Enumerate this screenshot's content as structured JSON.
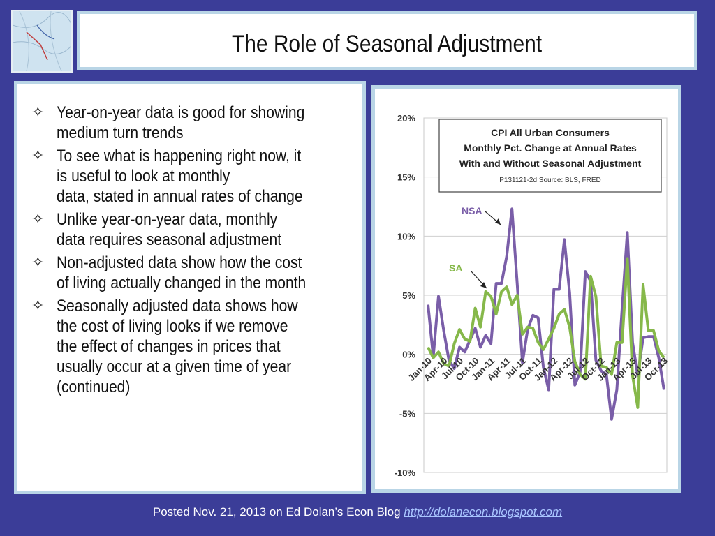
{
  "slide": {
    "title": "The Role of Seasonal Adjustment",
    "bullets": [
      {
        "icon": "star-bullet-icon",
        "text": "Year-on-year data is good for showing\nmedium turn trends"
      },
      {
        "icon": "star-bullet-icon",
        "text": "To see what is happening right now, it\nis useful to look at monthly\ndata, stated in annual rates of change"
      },
      {
        "icon": "star-bullet-icon",
        "text": "Unlike year-on-year data, monthly\ndata requires seasonal adjustment"
      },
      {
        "icon": "star-bullet-icon",
        "text": "Non-adjusted data show how the cost\nof living actually changed in the month"
      },
      {
        "icon": "star-bullet-icon",
        "text": "Seasonally adjusted data shows how\nthe cost of living looks if we remove\nthe effect of changes in prices that\nusually occur at a given time of year\n(continued)"
      }
    ]
  },
  "footer": {
    "text": "Posted Nov. 21, 2013 on Ed Dolan’s Econ Blog ",
    "link": "http://dolanecon.blogspot.com"
  },
  "chart_data": {
    "type": "line",
    "title": "CPI All Urban Consumers\nMonthly Pct. Change at Annual Rates\nWith and Without Seasonal Adjustment",
    "subtitle": "P131121-2d Source: BLS, FRED",
    "x": [
      "Jan-10",
      "Feb-10",
      "Mar-10",
      "Apr-10",
      "May-10",
      "Jun-10",
      "Jul-10",
      "Aug-10",
      "Sep-10",
      "Oct-10",
      "Nov-10",
      "Dec-10",
      "Jan-11",
      "Feb-11",
      "Mar-11",
      "Apr-11",
      "May-11",
      "Jun-11",
      "Jul-11",
      "Aug-11",
      "Sep-11",
      "Oct-11",
      "Nov-11",
      "Dec-11",
      "Jan-12",
      "Feb-12",
      "Mar-12",
      "Apr-12",
      "May-12",
      "Jun-12",
      "Jul-12",
      "Aug-12",
      "Sep-12",
      "Oct-12",
      "Nov-12",
      "Dec-12",
      "Jan-13",
      "Feb-13",
      "Mar-13",
      "Apr-13",
      "May-13",
      "Jun-13",
      "Jul-13",
      "Aug-13",
      "Sep-13",
      "Oct-13"
    ],
    "x_tick_labels": [
      "Jan-10",
      "Apr-10",
      "Jul-10",
      "Oct-10",
      "Jan-11",
      "Apr-11",
      "Jul-11",
      "Oct-11",
      "Jan-12",
      "Apr-12",
      "Jul-12",
      "Oct-12",
      "Jan-13",
      "Apr-13",
      "Jul-13",
      "Oct-13"
    ],
    "x_tick_index": [
      0,
      3,
      6,
      9,
      12,
      15,
      18,
      21,
      24,
      27,
      30,
      33,
      36,
      39,
      42,
      45
    ],
    "y_ticks": [
      20,
      15,
      10,
      5,
      0,
      -5,
      -10
    ],
    "y_tick_labels": [
      "20%",
      "15%",
      "10%",
      "5%",
      "0%",
      "-5%",
      "-10%"
    ],
    "ylim": [
      -10,
      20
    ],
    "grid": true,
    "series": [
      {
        "name": "NSA",
        "color": "#7a5ea8",
        "values": [
          4.2,
          -0.2,
          4.9,
          2.0,
          -0.5,
          -1.2,
          0.6,
          0.2,
          1.2,
          2.2,
          0.6,
          1.6,
          0.9,
          6.0,
          6.0,
          8.3,
          12.3,
          6.0,
          -0.7,
          2.1,
          3.3,
          3.1,
          -1.1,
          -3.0,
          5.5,
          5.5,
          9.7,
          5.2,
          -2.6,
          -1.5,
          7.0,
          6.2,
          -0.5,
          -1.4,
          -1.7,
          -5.5,
          -3.0,
          3.8,
          10.3,
          1.0,
          -1.8,
          1.4,
          1.5,
          1.5,
          -0.3,
          -3.0
        ]
      },
      {
        "name": "SA",
        "color": "#86b84a",
        "values": [
          0.6,
          -0.3,
          0.2,
          -0.8,
          -1.0,
          0.9,
          2.1,
          1.3,
          1.1,
          3.9,
          2.3,
          5.3,
          4.9,
          3.4,
          5.3,
          5.7,
          4.2,
          5.0,
          1.7,
          2.3,
          2.2,
          1.0,
          0.4,
          1.3,
          2.2,
          3.4,
          3.8,
          2.3,
          -0.6,
          -1.7,
          -2.1,
          6.6,
          4.9,
          -1.0,
          -1.1,
          -1.7,
          1.0,
          1.0,
          8.1,
          -1.8,
          -4.5,
          5.9,
          2.0,
          2.0,
          0.3,
          -0.3
        ]
      }
    ],
    "annotations": [
      {
        "text": "NSA",
        "color": "#7a5ea8"
      },
      {
        "text": "SA",
        "color": "#86b84a"
      }
    ]
  }
}
